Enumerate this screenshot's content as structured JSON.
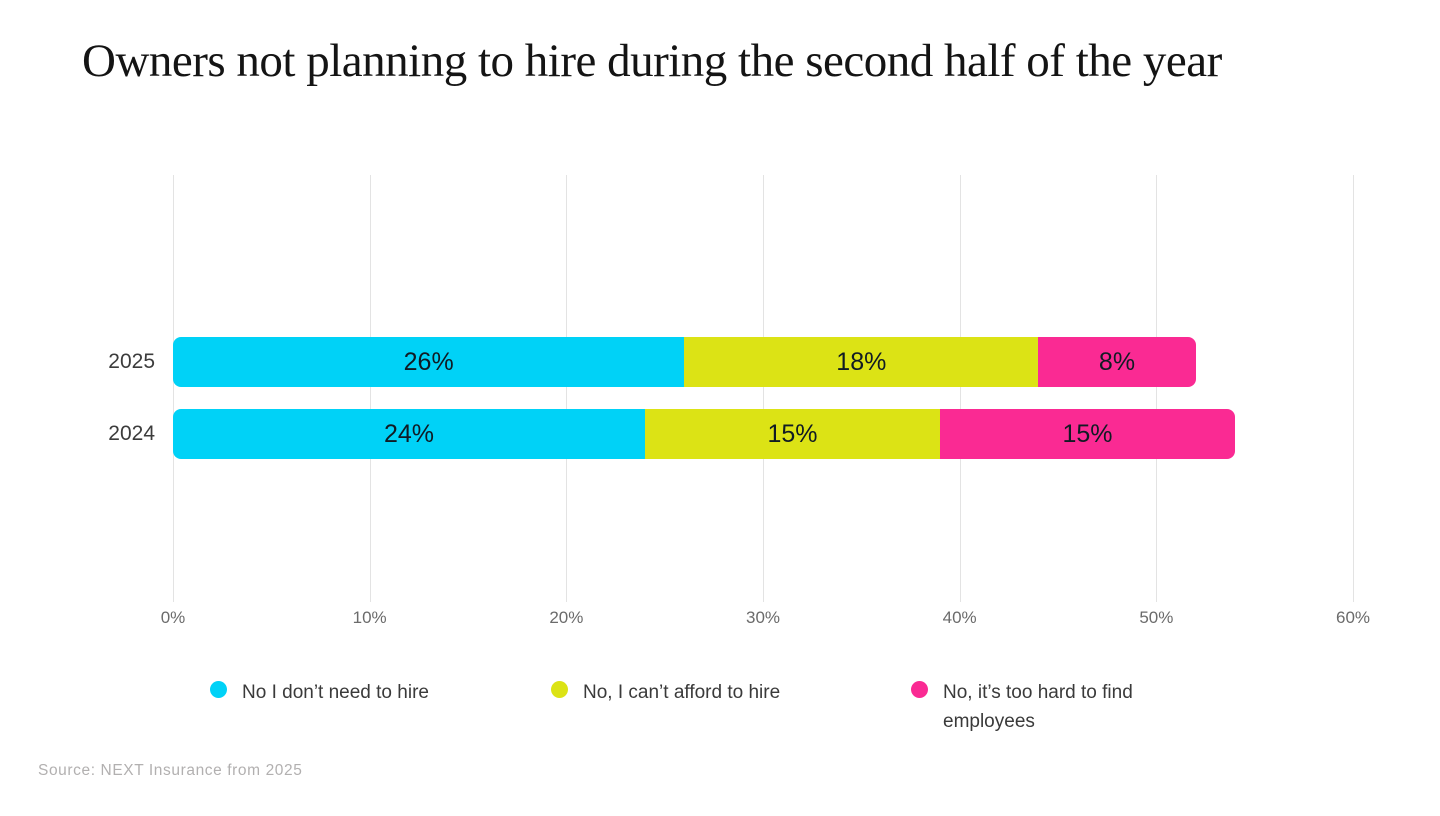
{
  "title": "Owners not planning to hire during the second half of the year",
  "source": "Source: NEXT Insurance from 2025",
  "colors": {
    "cyan": "#00d2f7",
    "yellow": "#dce315",
    "magenta": "#fa2a93",
    "gridline": "#e3e3e3",
    "bar_label": "#101b24",
    "axis_label": "#6b6b6b",
    "year_label": "#3c3c3c",
    "legend_text": "#3a3a3a",
    "source_text": "#b2b0b0"
  },
  "chart_data": {
    "type": "bar",
    "orientation": "horizontal",
    "stacked": true,
    "title": "Owners not planning to hire during the second half of the year",
    "categories": [
      "2025",
      "2024"
    ],
    "series": [
      {
        "name": "No I don’t need to hire",
        "color_key": "cyan",
        "values": [
          26,
          24
        ]
      },
      {
        "name": "No, I can’t afford to hire",
        "color_key": "yellow",
        "values": [
          18,
          15
        ]
      },
      {
        "name": "No, it’s too hard to find employees",
        "color_key": "magenta",
        "values": [
          8,
          15
        ]
      }
    ],
    "x_axis": {
      "min": 0,
      "max": 60,
      "ticks": [
        "0%",
        "10%",
        "20%",
        "30%",
        "40%",
        "50%",
        "60%"
      ]
    },
    "value_label_suffix": "%",
    "grid": true,
    "legend_position": "bottom"
  }
}
